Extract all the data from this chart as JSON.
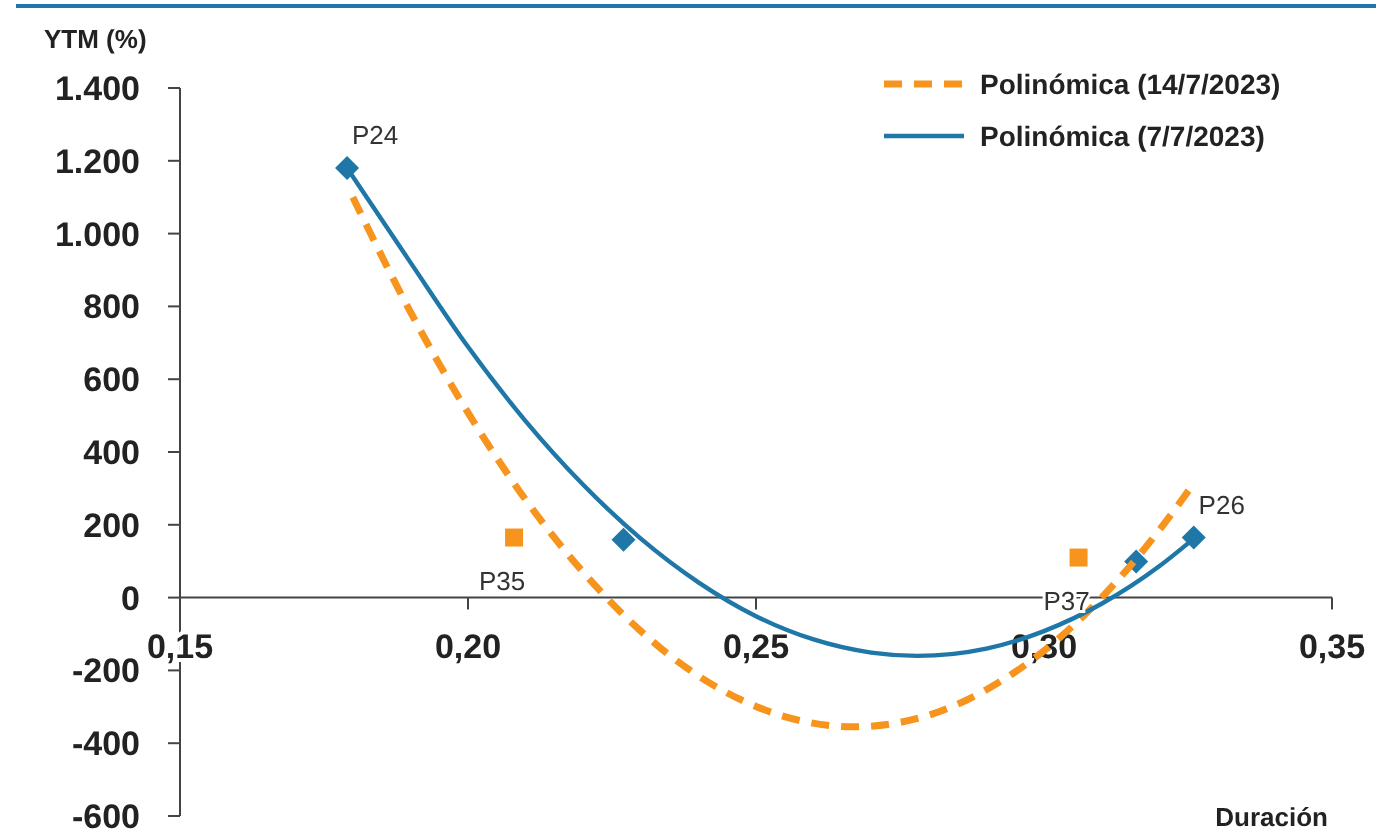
{
  "chart_data": {
    "type": "scatter",
    "xlabel": "Duración",
    "ylabel": "YTM (%)",
    "xlim": [
      0.15,
      0.35
    ],
    "xticks": [
      {
        "value": 0.15,
        "label": "0,15"
      },
      {
        "value": 0.2,
        "label": "0,20"
      },
      {
        "value": 0.25,
        "label": "0,25"
      },
      {
        "value": 0.3,
        "label": "0,30"
      },
      {
        "value": 0.35,
        "label": "0,35"
      }
    ],
    "ylim": [
      -600,
      1400
    ],
    "yticks": [
      {
        "value": -600,
        "label": "-600"
      },
      {
        "value": -400,
        "label": "-400"
      },
      {
        "value": -200,
        "label": "-200"
      },
      {
        "value": 0,
        "label": "0"
      },
      {
        "value": 200,
        "label": "200"
      },
      {
        "value": 400,
        "label": "400"
      },
      {
        "value": 600,
        "label": "600"
      },
      {
        "value": 800,
        "label": "800"
      },
      {
        "value": 1000,
        "label": "1.000"
      },
      {
        "value": 1200,
        "label": "1.200"
      },
      {
        "value": 1400,
        "label": "1.400"
      }
    ],
    "grid": false,
    "legend": "top right",
    "series": [
      {
        "color": "#f7941d",
        "marker": "square",
        "x": [
          0.208,
          0.306
        ],
        "values": [
          165,
          110
        ]
      },
      {
        "color": "#1f77a8",
        "marker": "diamond",
        "x": [
          0.179,
          0.227,
          0.316,
          0.326
        ],
        "values": [
          1180,
          159,
          99,
          165
        ]
      },
      {
        "type": "line",
        "name": "Polinómica (14/7/2023)",
        "color": "#f7941d",
        "line_style": "dashed",
        "marker": "none",
        "x": [
          0.18,
          0.19,
          0.2,
          0.21,
          0.22,
          0.23,
          0.24,
          0.25,
          0.267,
          0.28,
          0.29,
          0.3,
          0.31,
          0.32,
          0.326
        ],
        "values": [
          1100,
          785,
          508,
          269,
          70,
          -92,
          -215,
          -299,
          -355,
          -323,
          -253,
          -146,
          0,
          185,
          314
        ]
      },
      {
        "type": "line",
        "name": "Polinómica (7/7/2023)",
        "color": "#1f77a8",
        "line_style": "solid",
        "marker": "none",
        "x": [
          0.179,
          0.19,
          0.2,
          0.21,
          0.22,
          0.23,
          0.24,
          0.25,
          0.26,
          0.27,
          0.278,
          0.29,
          0.3,
          0.31,
          0.32,
          0.326
        ],
        "values": [
          1180,
          921,
          689,
          485,
          310,
          162,
          42,
          -51,
          -115,
          -151,
          -160,
          -140,
          -92,
          -17,
          86,
          162
        ]
      }
    ],
    "annotations": [
      {
        "text": "P24",
        "x": 0.179,
        "y": 1180
      },
      {
        "text": "P35",
        "x": 0.208,
        "y": 165
      },
      {
        "text": "P37",
        "x": 0.306,
        "y": 110
      },
      {
        "text": "P26",
        "x": 0.326,
        "y": 165
      }
    ]
  }
}
